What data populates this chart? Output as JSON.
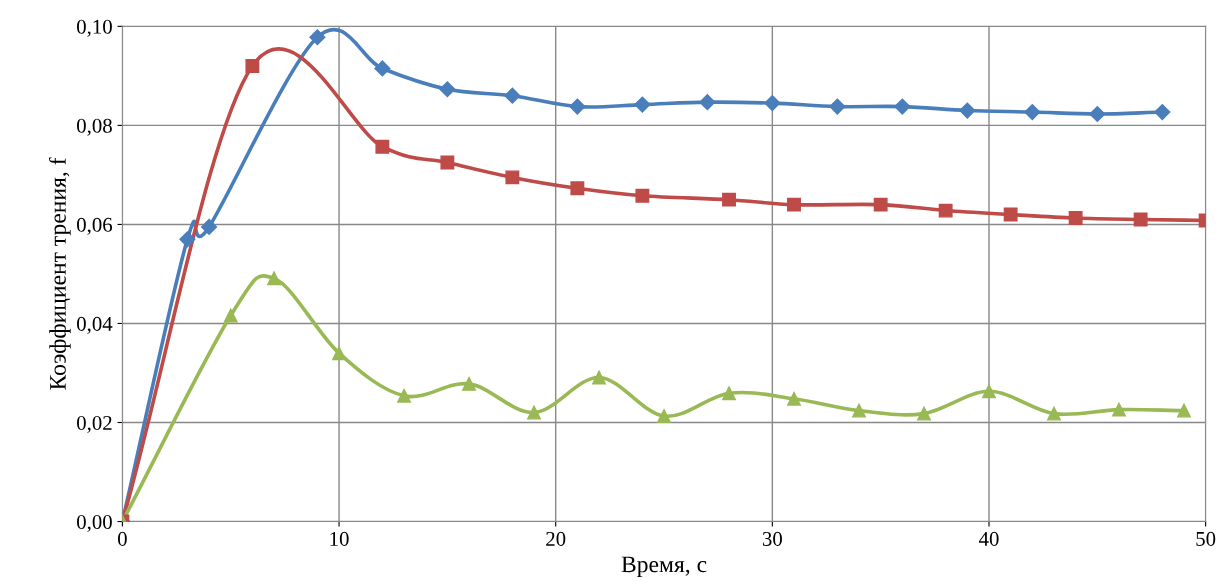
{
  "chart_data": {
    "type": "line",
    "xlabel": "Время, с",
    "ylabel": "Коэффициент трения, f",
    "xlim": [
      0,
      50
    ],
    "xticks": [
      0,
      10,
      20,
      30,
      40,
      50
    ],
    "ylim": [
      0,
      0.1
    ],
    "yticks": [
      {
        "value": 0,
        "label": "0,00"
      },
      {
        "value": 0.02,
        "label": "0,02"
      },
      {
        "value": 0.04,
        "label": "0,04"
      },
      {
        "value": 0.06,
        "label": "0,06"
      },
      {
        "value": 0.08,
        "label": "0,08"
      },
      {
        "value": 0.1,
        "label": "0,10"
      }
    ],
    "grid": true,
    "line_style": "solid",
    "series": [
      {
        "color": "#4a7ebb",
        "marker": "diamond",
        "x": [
          0,
          3,
          4,
          9,
          12,
          15,
          18,
          21,
          24,
          27,
          30,
          33,
          36,
          39,
          42,
          45,
          48
        ],
        "values": [
          0,
          0.057,
          0.0595,
          0.0978,
          0.0915,
          0.0873,
          0.086,
          0.0838,
          0.0842,
          0.0847,
          0.0845,
          0.0838,
          0.0838,
          0.083,
          0.0827,
          0.0823,
          0.0827
        ]
      },
      {
        "color": "#be4b48",
        "marker": "square",
        "x": [
          0,
          6,
          12,
          15,
          18,
          21,
          24,
          28,
          31,
          35,
          38,
          41,
          44,
          47,
          50
        ],
        "values": [
          0,
          0.092,
          0.0757,
          0.0725,
          0.0695,
          0.0673,
          0.0658,
          0.065,
          0.064,
          0.064,
          0.0628,
          0.062,
          0.0613,
          0.061,
          0.0608
        ]
      },
      {
        "color": "#98b954",
        "marker": "triangle",
        "x": [
          0,
          5,
          7,
          10,
          13,
          16,
          19,
          22,
          25,
          28,
          31,
          34,
          37,
          40,
          43,
          46,
          49
        ],
        "values": [
          0,
          0.0416,
          0.0491,
          0.034,
          0.0254,
          0.0278,
          0.022,
          0.0291,
          0.0213,
          0.0259,
          0.0248,
          0.0224,
          0.0218,
          0.0263,
          0.0218,
          0.0226,
          0.0224
        ]
      }
    ]
  }
}
